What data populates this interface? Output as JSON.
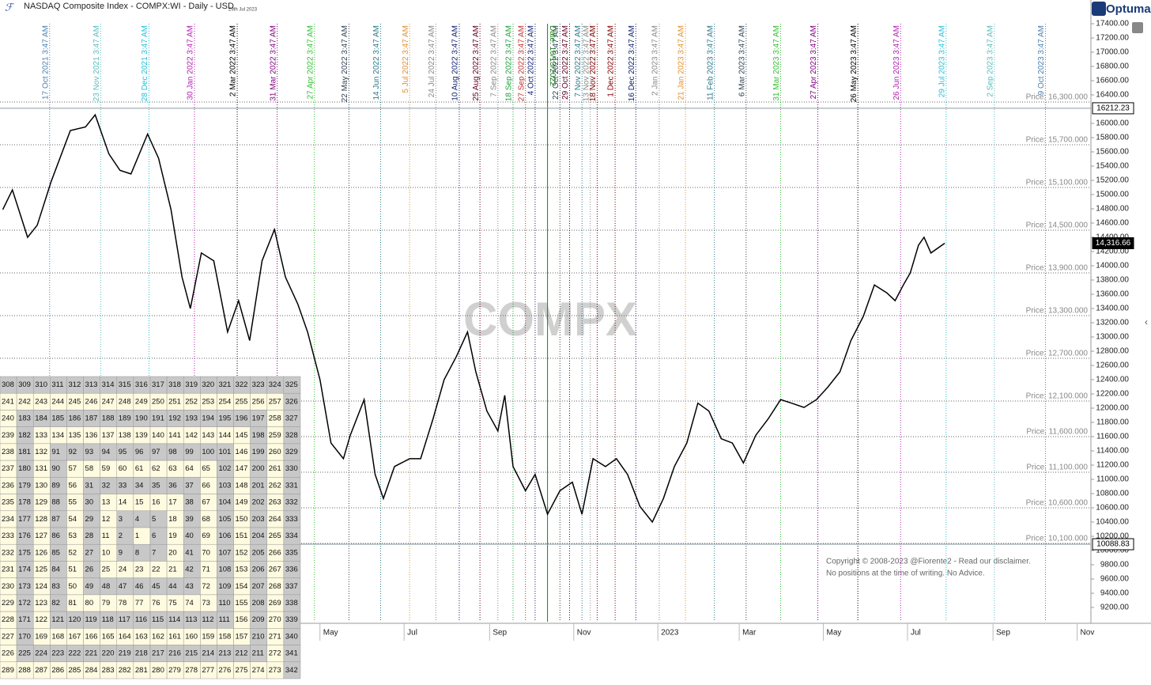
{
  "chart_data": {
    "type": "line",
    "title": "NASDAQ Composite Index - COMPX:WI - Daily - USD",
    "subtitle": "29th Jul 2023",
    "brand": "Optuma",
    "watermark": "COMPX",
    "copyright": [
      "Copyright © 2008-2023 @Fiorente2 -  Read our disclaimer.",
      "No positions at the time of writing. No Advice."
    ],
    "color": "#000000",
    "xlim": [
      "2021-09-11",
      "2023-11-11"
    ],
    "ylim": [
      9000,
      17600
    ],
    "xticks": [
      {
        "value": "2022-05-01",
        "label": "May"
      },
      {
        "value": "2022-07-01",
        "label": "Jul"
      },
      {
        "value": "2022-09-01",
        "label": "Sep"
      },
      {
        "value": "2022-11-01",
        "label": "Nov"
      },
      {
        "value": "2023-01-01",
        "label": "2023"
      },
      {
        "value": "2023-03-01",
        "label": "Mar"
      },
      {
        "value": "2023-05-01",
        "label": "May"
      },
      {
        "value": "2023-07-01",
        "label": "Jul"
      },
      {
        "value": "2023-09-01",
        "label": "Sep"
      },
      {
        "value": "2023-11-01",
        "label": "Nov"
      }
    ],
    "yticks": [
      {
        "value": 9200,
        "label": "9200.00"
      },
      {
        "value": 9400,
        "label": "9400.00"
      },
      {
        "value": 9600,
        "label": "9600.00"
      },
      {
        "value": 9800,
        "label": "9800.00"
      },
      {
        "value": 10000,
        "label": "10000.00"
      },
      {
        "value": 10200,
        "label": "10200.00"
      },
      {
        "value": 10400,
        "label": "10400.00"
      },
      {
        "value": 10600,
        "label": "10600.00"
      },
      {
        "value": 10800,
        "label": "10800.00"
      },
      {
        "value": 11000,
        "label": "11000.00"
      },
      {
        "value": 11200,
        "label": "11200.00"
      },
      {
        "value": 11400,
        "label": "11400.00"
      },
      {
        "value": 11600,
        "label": "11600.00"
      },
      {
        "value": 11800,
        "label": "11800.00"
      },
      {
        "value": 12000,
        "label": "12000.00"
      },
      {
        "value": 12200,
        "label": "12200.00"
      },
      {
        "value": 12400,
        "label": "12400.00"
      },
      {
        "value": 12600,
        "label": "12600.00"
      },
      {
        "value": 12800,
        "label": "12800.00"
      },
      {
        "value": 13000,
        "label": "13000.00"
      },
      {
        "value": 13200,
        "label": "13200.00"
      },
      {
        "value": 13400,
        "label": "13400.00"
      },
      {
        "value": 13600,
        "label": "13600.00"
      },
      {
        "value": 13800,
        "label": "13800.00"
      },
      {
        "value": 14000,
        "label": "14000.00"
      },
      {
        "value": 14200,
        "label": "14200.00"
      },
      {
        "value": 14400,
        "label": "14400.00"
      },
      {
        "value": 14600,
        "label": "14600.00"
      },
      {
        "value": 14800,
        "label": "14800.00"
      },
      {
        "value": 15000,
        "label": "15000.00"
      },
      {
        "value": 15200,
        "label": "15200.00"
      },
      {
        "value": 15400,
        "label": "15400.00"
      },
      {
        "value": 15600,
        "label": "15600.00"
      },
      {
        "value": 15800,
        "label": "15800.00"
      },
      {
        "value": 16000,
        "label": "16000.00"
      },
      {
        "value": 16400,
        "label": "16400.00"
      },
      {
        "value": 16600,
        "label": "16600.00"
      },
      {
        "value": 16800,
        "label": "16800.00"
      },
      {
        "value": 17000,
        "label": "17000.00"
      },
      {
        "value": 17200,
        "label": "17200.00"
      },
      {
        "value": 17400,
        "label": "17400.00"
      }
    ],
    "price_levels": [
      {
        "value": 16300,
        "label": "Price: 16,300.000"
      },
      {
        "value": 15700,
        "label": "Price: 15,700.000"
      },
      {
        "value": 15100,
        "label": "Price: 15,100.000"
      },
      {
        "value": 14500,
        "label": "Price: 14,500.000"
      },
      {
        "value": 13900,
        "label": "Price: 13,900.000"
      },
      {
        "value": 13300,
        "label": "Price: 13,300.000"
      },
      {
        "value": 12700,
        "label": "Price: 12,700.000"
      },
      {
        "value": 12100,
        "label": "Price: 12,100.000"
      },
      {
        "value": 11600,
        "label": "Price: 11,600.000"
      },
      {
        "value": 11100,
        "label": "Price: 11,100.000"
      },
      {
        "value": 10600,
        "label": "Price: 10,600.000"
      },
      {
        "value": 10100,
        "label": "Price: 10,100.000"
      }
    ],
    "marked_prices": [
      {
        "value": 16212.23,
        "label": "16212.23",
        "color": "#ffffff"
      },
      {
        "value": 14316.66,
        "label": "14,316.66",
        "color": "#000000"
      },
      {
        "value": 10088.83,
        "label": "10088.83",
        "color": "#ffffff"
      }
    ],
    "date_line": {
      "x": "2022-10-13",
      "label": "Date: 10/13/2022",
      "color": "#1a7a1a"
    },
    "vlines": [
      {
        "x": "2021-10-17",
        "label": "17 Oct 2021 3:47 AM",
        "color": "#4a7fb0"
      },
      {
        "x": "2021-11-23",
        "label": "23 Nov 2021 3:47 AM",
        "color": "#5bbcbc"
      },
      {
        "x": "2021-12-28",
        "label": "28 Dec 2021 3:47 AM",
        "color": "#26c0d8"
      },
      {
        "x": "2022-01-30",
        "label": "30 Jan 2022 3:47 AM",
        "color": "#b020b0"
      },
      {
        "x": "2022-03-02",
        "label": "2 Mar 2022 3:47 AM",
        "color": "#000000"
      },
      {
        "x": "2022-03-31",
        "label": "31 Mar 2022 3:47 AM",
        "color": "#800080"
      },
      {
        "x": "2022-04-27",
        "label": "27 Apr 2022 3:47 AM",
        "color": "#30c030"
      },
      {
        "x": "2022-05-22",
        "label": "22 May 2022 3:47 AM",
        "color": "#334455"
      },
      {
        "x": "2022-06-14",
        "label": "14 Jun 2022 3:47 AM",
        "color": "#2a7a8a"
      },
      {
        "x": "2022-07-05",
        "label": "5 Jul 2022 3:47 AM",
        "color": "#e09030"
      },
      {
        "x": "2022-07-24",
        "label": "24 Jul 2022 3:47 AM",
        "color": "#888888"
      },
      {
        "x": "2022-08-10",
        "label": "10 Aug 2022 3:47 AM",
        "color": "#102070"
      },
      {
        "x": "2022-08-25",
        "label": "25 Aug 2022 3:47 AM",
        "color": "#600020"
      },
      {
        "x": "2022-09-07",
        "label": "7 Sep 2022 3:47 AM",
        "color": "#888888"
      },
      {
        "x": "2022-09-18",
        "label": "18 Sep 2022 3:47 AM",
        "color": "#20a040"
      },
      {
        "x": "2022-09-27",
        "label": "27 Sep 2022 3:47 AM",
        "color": "#c03030"
      },
      {
        "x": "2022-10-04",
        "label": "4 Oct 2022 3:47 AM",
        "color": "#102070"
      },
      {
        "x": "2022-10-22",
        "label": "22 Oct 2022 3:47 AM",
        "color": "#334455"
      },
      {
        "x": "2022-10-29",
        "label": "29 Oct 2022 3:47 AM",
        "color": "#600020"
      },
      {
        "x": "2022-11-07",
        "label": "7 Nov 2022 3:47 AM",
        "color": "#2a7a8a"
      },
      {
        "x": "2022-11-13",
        "label": "13 Nov 2022 3:47 AM",
        "color": "#888888"
      },
      {
        "x": "2022-11-18",
        "label": "18 Nov 2022 3:47 AM",
        "color": "#800000"
      },
      {
        "x": "2022-12-01",
        "label": "1 Dec 2022 3:47 AM",
        "color": "#800000"
      },
      {
        "x": "2022-12-16",
        "label": "16 Dec 2022 3:47 AM",
        "color": "#102070"
      },
      {
        "x": "2023-01-02",
        "label": "2 Jan 2023 3:47 AM",
        "color": "#888888"
      },
      {
        "x": "2023-01-21",
        "label": "21 Jan 2023 3:47 AM",
        "color": "#e09030"
      },
      {
        "x": "2023-02-11",
        "label": "11 Feb 2023 3:47 AM",
        "color": "#2a7a8a"
      },
      {
        "x": "2023-03-06",
        "label": "6 Mar 2023 3:47 AM",
        "color": "#334455"
      },
      {
        "x": "2023-03-31",
        "label": "31 Mar 2023 3:47 AM",
        "color": "#30c030"
      },
      {
        "x": "2023-04-27",
        "label": "27 Apr 2023 3:47 AM",
        "color": "#800080"
      },
      {
        "x": "2023-05-26",
        "label": "26 May 2023 3:47 AM",
        "color": "#000000"
      },
      {
        "x": "2023-06-26",
        "label": "26 Jun 2023 3:47 AM",
        "color": "#b020b0"
      },
      {
        "x": "2023-07-29",
        "label": "29 Jul 2023 3:47 AM",
        "color": "#26c0d8"
      },
      {
        "x": "2023-09-02",
        "label": "2 Sep 2023 3:47 AM",
        "color": "#5bbcbc"
      },
      {
        "x": "2023-10-09",
        "label": "9 Oct 2023 3:47 AM",
        "color": "#4a7fb0"
      }
    ],
    "x": [
      "2021-09-13",
      "2021-09-20",
      "2021-10-01",
      "2021-10-08",
      "2021-10-18",
      "2021-11-01",
      "2021-11-12",
      "2021-11-19",
      "2021-11-29",
      "2021-12-07",
      "2021-12-15",
      "2021-12-27",
      "2022-01-04",
      "2022-01-13",
      "2022-01-21",
      "2022-01-27",
      "2022-02-04",
      "2022-02-13",
      "2022-02-23",
      "2022-03-03",
      "2022-03-11",
      "2022-03-20",
      "2022-03-29",
      "2022-04-06",
      "2022-04-15",
      "2022-04-22",
      "2022-05-01",
      "2022-05-09",
      "2022-05-18",
      "2022-05-23",
      "2022-06-02",
      "2022-06-10",
      "2022-06-16",
      "2022-06-24",
      "2022-07-05",
      "2022-07-13",
      "2022-07-22",
      "2022-07-30",
      "2022-08-08",
      "2022-08-16",
      "2022-08-22",
      "2022-08-30",
      "2022-09-07",
      "2022-09-12",
      "2022-09-18",
      "2022-09-27",
      "2022-10-04",
      "2022-10-13",
      "2022-10-22",
      "2022-10-31",
      "2022-11-07",
      "2022-11-15",
      "2022-11-24",
      "2022-12-02",
      "2022-12-10",
      "2022-12-19",
      "2022-12-28",
      "2023-01-05",
      "2023-01-13",
      "2023-01-22",
      "2023-01-30",
      "2023-02-07",
      "2023-02-16",
      "2023-02-24",
      "2023-03-04",
      "2023-03-13",
      "2023-03-22",
      "2023-03-31",
      "2023-04-08",
      "2023-04-17",
      "2023-04-26",
      "2023-05-04",
      "2023-05-13",
      "2023-05-21",
      "2023-05-30",
      "2023-06-07",
      "2023-06-16",
      "2023-06-22",
      "2023-06-28",
      "2023-07-03",
      "2023-07-09",
      "2023-07-13",
      "2023-07-18",
      "2023-07-28"
    ],
    "values": [
      14790,
      15065,
      14400,
      14570,
      15180,
      15900,
      15950,
      16120,
      15570,
      15340,
      15290,
      15850,
      15510,
      14790,
      13840,
      13400,
      14180,
      14070,
      13070,
      13510,
      12950,
      14070,
      14510,
      13840,
      13460,
      13070,
      12400,
      11510,
      11290,
      11620,
      12120,
      11070,
      10730,
      11180,
      11290,
      11290,
      11850,
      12400,
      12730,
      13070,
      12510,
      11960,
      11680,
      12180,
      11180,
      10840,
      11070,
      10510,
      10840,
      10960,
      10510,
      11290,
      11180,
      11290,
      11070,
      10620,
      10400,
      10730,
      11180,
      11510,
      12070,
      11960,
      11570,
      11510,
      11230,
      11620,
      11850,
      12120,
      12070,
      12010,
      12120,
      12290,
      12510,
      12950,
      13290,
      13730,
      13620,
      13510,
      13730,
      13900,
      14290,
      14400,
      14180,
      14316.66
    ],
    "table": [
      [
        308,
        309,
        310,
        311,
        312,
        313,
        314,
        315,
        316,
        317,
        318,
        319,
        320,
        321,
        322,
        323,
        324,
        325
      ],
      [
        241,
        242,
        243,
        244,
        245,
        246,
        247,
        248,
        249,
        250,
        251,
        252,
        253,
        254,
        255,
        256,
        257,
        326
      ],
      [
        240,
        183,
        184,
        185,
        186,
        187,
        188,
        189,
        190,
        191,
        192,
        193,
        194,
        195,
        196,
        197,
        258,
        327
      ],
      [
        239,
        182,
        133,
        134,
        135,
        136,
        137,
        138,
        139,
        140,
        141,
        142,
        143,
        144,
        145,
        198,
        259,
        328
      ],
      [
        238,
        181,
        132,
        91,
        92,
        93,
        94,
        95,
        96,
        97,
        98,
        99,
        100,
        101,
        146,
        199,
        260,
        329
      ],
      [
        237,
        180,
        131,
        90,
        57,
        58,
        59,
        60,
        61,
        62,
        63,
        64,
        65,
        102,
        147,
        200,
        261,
        330
      ],
      [
        236,
        179,
        130,
        89,
        56,
        31,
        32,
        33,
        34,
        35,
        36,
        37,
        66,
        103,
        148,
        201,
        262,
        331
      ],
      [
        235,
        178,
        129,
        88,
        55,
        30,
        13,
        14,
        15,
        16,
        17,
        38,
        67,
        104,
        149,
        202,
        263,
        332
      ],
      [
        234,
        177,
        128,
        87,
        54,
        29,
        12,
        3,
        4,
        5,
        18,
        39,
        68,
        105,
        150,
        203,
        264,
        333
      ],
      [
        233,
        176,
        127,
        86,
        53,
        28,
        11,
        2,
        1,
        6,
        19,
        40,
        69,
        106,
        151,
        204,
        265,
        334
      ],
      [
        232,
        175,
        126,
        85,
        52,
        27,
        10,
        9,
        8,
        7,
        20,
        41,
        70,
        107,
        152,
        205,
        266,
        335
      ],
      [
        231,
        174,
        125,
        84,
        51,
        26,
        25,
        24,
        23,
        22,
        21,
        42,
        71,
        108,
        153,
        206,
        267,
        336
      ],
      [
        230,
        173,
        124,
        83,
        50,
        49,
        48,
        47,
        46,
        45,
        44,
        43,
        72,
        109,
        154,
        207,
        268,
        337
      ],
      [
        229,
        172,
        123,
        82,
        81,
        80,
        79,
        78,
        77,
        76,
        75,
        74,
        73,
        110,
        155,
        208,
        269,
        338
      ],
      [
        228,
        171,
        122,
        121,
        120,
        119,
        118,
        117,
        116,
        115,
        114,
        113,
        112,
        111,
        156,
        209,
        270,
        339
      ],
      [
        227,
        170,
        169,
        168,
        167,
        166,
        165,
        164,
        163,
        162,
        161,
        160,
        159,
        158,
        157,
        210,
        271,
        340
      ],
      [
        226,
        225,
        224,
        223,
        222,
        221,
        220,
        219,
        218,
        217,
        216,
        215,
        214,
        213,
        212,
        211,
        272,
        341
      ],
      [
        289,
        288,
        287,
        286,
        285,
        284,
        283,
        282,
        281,
        280,
        279,
        278,
        277,
        276,
        275,
        274,
        273,
        342
      ]
    ]
  }
}
